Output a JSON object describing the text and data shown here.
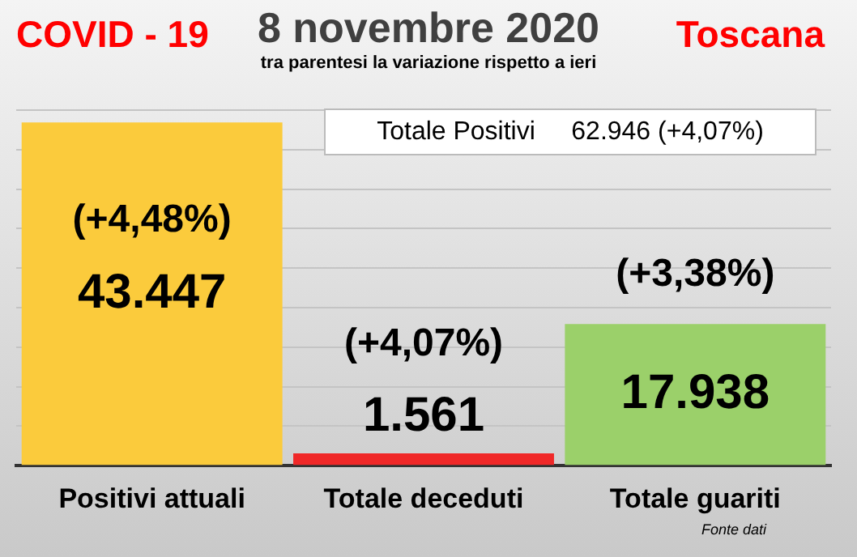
{
  "chart_data": {
    "type": "bar",
    "title": "8 novembre 2020",
    "subtitle": "tra parentesi la variazione rispetto a ieri",
    "categories": [
      "Positivi attuali",
      "Totale deceduti",
      "Totale guariti"
    ],
    "values": [
      43447,
      1561,
      17938
    ],
    "colors": [
      "#fbcb3c",
      "#f02828",
      "#9bd06a"
    ],
    "value_labels": [
      "43.447",
      "1.561",
      "17.938"
    ],
    "ylim": [
      0,
      45000
    ],
    "yticks": [
      {
        "value": 0,
        "label": null
      },
      {
        "value": 5000,
        "label": null
      },
      {
        "value": 10000,
        "label": null
      },
      {
        "value": 15000,
        "label": null
      },
      {
        "value": 20000,
        "label": null
      },
      {
        "value": 25000,
        "label": null
      },
      {
        "value": 30000,
        "label": null
      },
      {
        "value": 35000,
        "label": null
      },
      {
        "value": 40000,
        "label": null
      },
      {
        "value": 45000,
        "label": null
      }
    ],
    "tick_labels": "x",
    "grid": "y",
    "legend": false,
    "annotations": [
      "COVID - 19",
      "Toscana",
      "Totale Positivi     62.946 (+4,07%)",
      {
        "text": "(+4,48%)",
        "x": "Positivi attuali",
        "y": 43447
      },
      {
        "text": "(+4,07%)",
        "x": "Totale deceduti",
        "y": 1561
      },
      {
        "text": "(+3,38%)",
        "x": "Totale guariti",
        "y": 17938
      },
      "Fonte dati"
    ]
  }
}
